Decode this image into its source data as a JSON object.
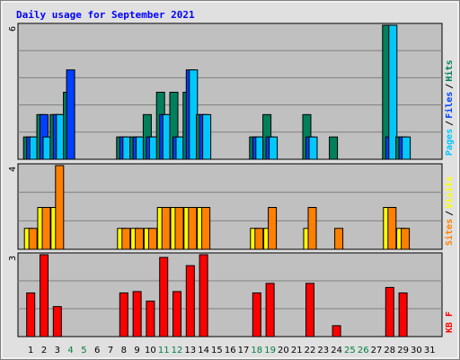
{
  "chart_data": {
    "title": "Daily usage for September 2021",
    "type": "bar",
    "x": [
      1,
      2,
      3,
      4,
      5,
      6,
      7,
      8,
      9,
      10,
      11,
      12,
      13,
      14,
      15,
      16,
      17,
      18,
      19,
      20,
      21,
      22,
      23,
      24,
      25,
      26,
      27,
      28,
      29,
      30,
      31
    ],
    "weekend_days": [
      4,
      5,
      11,
      12,
      18,
      19,
      25,
      26
    ],
    "panels": [
      {
        "id": "hits_files_pages",
        "ymax": 6,
        "axis_label": "6",
        "legend": [
          "Pages",
          "/",
          "Files",
          "/",
          "Hits"
        ],
        "series": [
          {
            "name": "Hits",
            "color": "#00805c",
            "values": [
              1,
              2,
              2,
              3,
              0,
              0,
              0,
              1,
              1,
              2,
              3,
              3,
              3,
              2,
              0,
              0,
              0,
              1,
              2,
              0,
              0,
              2,
              0,
              1,
              0,
              0,
              0,
              6,
              1,
              0,
              0
            ]
          },
          {
            "name": "Files",
            "color": "#0040ff",
            "values": [
              1,
              2,
              2,
              4,
              0,
              0,
              0,
              1,
              1,
              1,
              2,
              1,
              4,
              2,
              0,
              0,
              0,
              1,
              1,
              0,
              0,
              1,
              0,
              0,
              0,
              0,
              0,
              1,
              1,
              0,
              0
            ]
          },
          {
            "name": "Pages",
            "color": "#00c8ff",
            "values": [
              1,
              1,
              2,
              0,
              0,
              0,
              0,
              1,
              1,
              1,
              2,
              1,
              4,
              2,
              0,
              0,
              0,
              1,
              1,
              0,
              0,
              1,
              0,
              0,
              0,
              0,
              0,
              6,
              1,
              0,
              0
            ]
          }
        ]
      },
      {
        "id": "visits_sites",
        "ymax": 4,
        "axis_label": "4",
        "legend": [
          "Sites",
          "/",
          "Visits"
        ],
        "series": [
          {
            "name": "Visits",
            "color": "#ffff00",
            "values": [
              1,
              2,
              2,
              0,
              0,
              0,
              0,
              1,
              1,
              1,
              2,
              2,
              2,
              2,
              0,
              0,
              0,
              1,
              1,
              0,
              0,
              1,
              0,
              0,
              0,
              0,
              0,
              2,
              1,
              0,
              0
            ]
          },
          {
            "name": "Sites",
            "color": "#ff8000",
            "values": [
              1,
              2,
              4,
              0,
              0,
              0,
              0,
              1,
              1,
              1,
              2,
              2,
              2,
              2,
              0,
              0,
              0,
              1,
              2,
              0,
              0,
              2,
              0,
              1,
              0,
              0,
              0,
              2,
              1,
              0,
              0
            ]
          }
        ]
      },
      {
        "id": "kbf",
        "ymax": 3,
        "axis_label": "3",
        "legend": [
          "KB F"
        ],
        "series": [
          {
            "name": "KB F",
            "color": "#ff0000",
            "values": [
              1.6,
              3.0,
              1.1,
              0,
              0,
              0,
              0,
              1.6,
              1.65,
              1.3,
              2.9,
              1.65,
              2.6,
              3.0,
              0,
              0,
              0,
              1.6,
              1.95,
              0,
              0,
              1.95,
              0,
              0.4,
              0,
              0,
              0,
              1.8,
              1.6,
              0,
              0
            ]
          }
        ]
      }
    ]
  },
  "colors": {
    "title": "#0000ff",
    "weekday_label": "#000000",
    "weekend_label": "#008040",
    "plot_bg": "#c0c0c0",
    "frame_bg": "#e0e0e0",
    "legend_sep": "#000000"
  }
}
